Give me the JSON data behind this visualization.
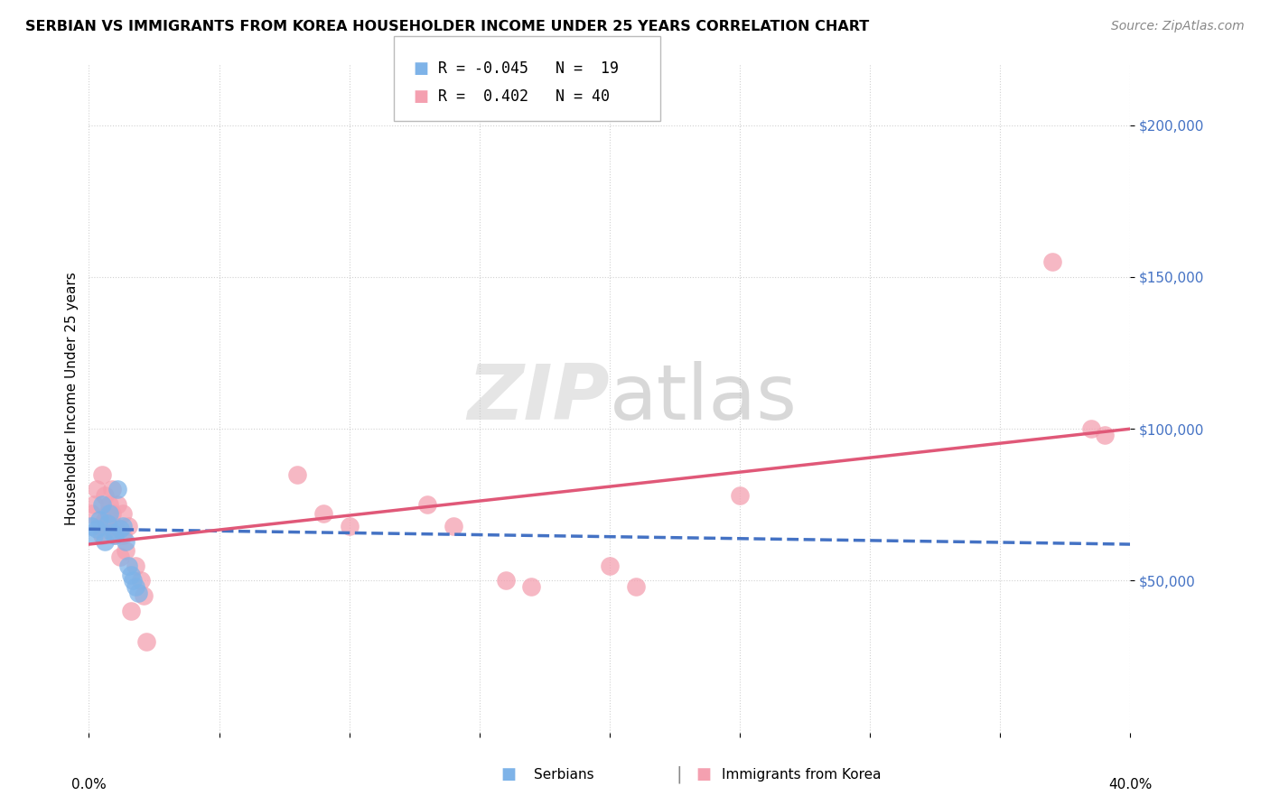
{
  "title": "SERBIAN VS IMMIGRANTS FROM KOREA HOUSEHOLDER INCOME UNDER 25 YEARS CORRELATION CHART",
  "source": "Source: ZipAtlas.com",
  "ylabel": "Householder Income Under 25 years",
  "xlim": [
    0.0,
    0.4
  ],
  "ylim": [
    0,
    220000
  ],
  "yticks": [
    50000,
    100000,
    150000,
    200000
  ],
  "ytick_labels": [
    "$50,000",
    "$100,000",
    "$150,000",
    "$200,000"
  ],
  "legend_serbian_R": "-0.045",
  "legend_serbian_N": "19",
  "legend_korea_R": "0.402",
  "legend_korea_N": "40",
  "serbian_color": "#7eb3e8",
  "korea_color": "#f4a0b0",
  "serbian_line_color": "#4472c4",
  "korea_line_color": "#e05878",
  "background_color": "#ffffff",
  "serbian_points": [
    [
      0.001,
      68000
    ],
    [
      0.002,
      65000
    ],
    [
      0.003,
      67000
    ],
    [
      0.004,
      70000
    ],
    [
      0.005,
      75000
    ],
    [
      0.006,
      63000
    ],
    [
      0.007,
      69000
    ],
    [
      0.008,
      72000
    ],
    [
      0.009,
      66000
    ],
    [
      0.01,
      65000
    ],
    [
      0.011,
      80000
    ],
    [
      0.012,
      67000
    ],
    [
      0.013,
      68000
    ],
    [
      0.014,
      63000
    ],
    [
      0.015,
      55000
    ],
    [
      0.016,
      52000
    ],
    [
      0.017,
      50000
    ],
    [
      0.018,
      48000
    ],
    [
      0.019,
      46000
    ]
  ],
  "korea_points": [
    [
      0.001,
      72000
    ],
    [
      0.002,
      75000
    ],
    [
      0.003,
      80000
    ],
    [
      0.004,
      68000
    ],
    [
      0.005,
      85000
    ],
    [
      0.005,
      65000
    ],
    [
      0.006,
      70000
    ],
    [
      0.006,
      78000
    ],
    [
      0.007,
      72000
    ],
    [
      0.007,
      68000
    ],
    [
      0.008,
      75000
    ],
    [
      0.008,
      68000
    ],
    [
      0.009,
      80000
    ],
    [
      0.009,
      72000
    ],
    [
      0.01,
      68000
    ],
    [
      0.01,
      65000
    ],
    [
      0.011,
      75000
    ],
    [
      0.012,
      58000
    ],
    [
      0.013,
      72000
    ],
    [
      0.013,
      65000
    ],
    [
      0.014,
      60000
    ],
    [
      0.015,
      68000
    ],
    [
      0.016,
      40000
    ],
    [
      0.018,
      55000
    ],
    [
      0.02,
      50000
    ],
    [
      0.021,
      45000
    ],
    [
      0.022,
      30000
    ],
    [
      0.08,
      85000
    ],
    [
      0.09,
      72000
    ],
    [
      0.1,
      68000
    ],
    [
      0.13,
      75000
    ],
    [
      0.14,
      68000
    ],
    [
      0.16,
      50000
    ],
    [
      0.17,
      48000
    ],
    [
      0.2,
      55000
    ],
    [
      0.21,
      48000
    ],
    [
      0.25,
      78000
    ],
    [
      0.37,
      155000
    ],
    [
      0.385,
      100000
    ],
    [
      0.39,
      98000
    ]
  ],
  "serbian_trend": [
    0.0,
    0.4,
    67000,
    62000
  ],
  "korea_trend": [
    0.0,
    0.4,
    62000,
    100000
  ]
}
